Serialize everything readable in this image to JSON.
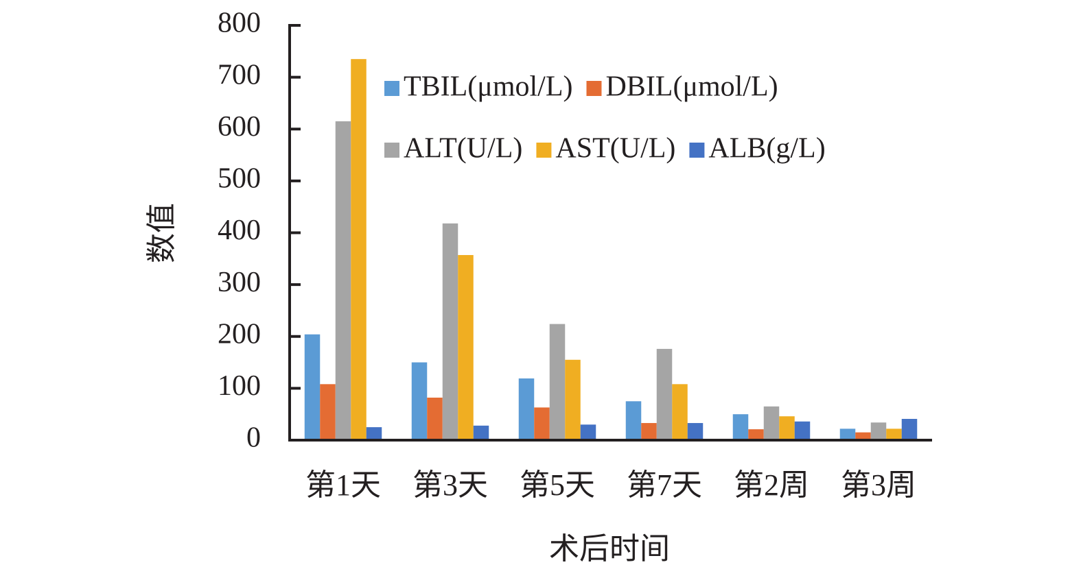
{
  "chart_data": {
    "type": "bar",
    "categories": [
      "第1天",
      "第3天",
      "第5天",
      "第7天",
      "第2周",
      "第3周"
    ],
    "series": [
      {
        "name": "TBIL(μmol/L)",
        "color": "#5b9bd5",
        "values": [
          204,
          150,
          119,
          75,
          50,
          22
        ]
      },
      {
        "name": "DBIL(μmol/L)",
        "color": "#e46c33",
        "values": [
          108,
          82,
          63,
          33,
          21,
          15
        ]
      },
      {
        "name": "ALT(U/L)",
        "color": "#a5a5a5",
        "values": [
          615,
          418,
          224,
          176,
          65,
          34
        ]
      },
      {
        "name": "AST(U/L)",
        "color": "#f0ae22",
        "values": [
          735,
          357,
          155,
          108,
          46,
          22
        ]
      },
      {
        "name": "ALB(g/L)",
        "color": "#4472c4",
        "values": [
          25,
          28,
          30,
          33,
          36,
          41
        ]
      }
    ],
    "x_label": "术后时间",
    "y_label": "数值",
    "ylim": [
      0,
      800
    ],
    "yticks": [
      0,
      100,
      200,
      300,
      400,
      500,
      600,
      700,
      800
    ],
    "grid": false,
    "legend": "upper-right"
  }
}
